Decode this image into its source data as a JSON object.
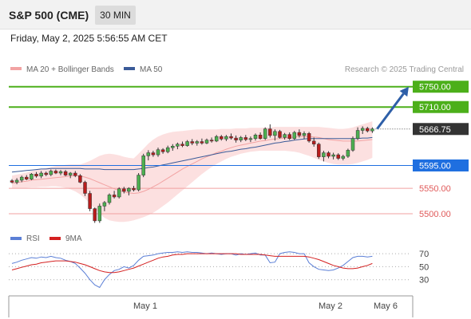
{
  "header": {
    "symbol": "S&P 500 (CME)",
    "interval": "30 MIN",
    "datetime": "Friday, May 2, 2025 5:56:55 AM CET"
  },
  "credit": "Research © 2025 Trading Central",
  "colors": {
    "green": "#4caf1a",
    "blue_line": "#3a5aa8",
    "blue_label": "#1f6fe0",
    "red": "#e05a5a",
    "current": "#333333",
    "bull": "#4caf50",
    "bear": "#b81c1c",
    "band": "#fbd6d6",
    "ma50": "#3a5a98",
    "ma20": "#f2a3a3",
    "rsi": "#5b7fd6",
    "rsi_ma": "#d42020",
    "arrow": "#2e5fa8"
  },
  "chart_data": [
    {
      "type": "candlestick",
      "title": "",
      "legend": [
        {
          "label": "MA 20 + Bollinger Bands",
          "color_key": "ma20"
        },
        {
          "label": "MA 50",
          "color_key": "ma50"
        }
      ],
      "x_ticks": [
        "May 1",
        "May 2",
        "May 6"
      ],
      "ylim": [
        5478,
        5770
      ],
      "levels": [
        {
          "value": 5750,
          "label": "5750.00",
          "kind": "resistance",
          "color_key": "green",
          "style": "box"
        },
        {
          "value": 5710,
          "label": "5710.00",
          "kind": "resistance",
          "color_key": "green",
          "style": "box"
        },
        {
          "value": 5666.75,
          "label": "5666.75",
          "kind": "current",
          "color_key": "current",
          "style": "box"
        },
        {
          "value": 5595,
          "label": "5595.00",
          "kind": "pivot",
          "color_key": "blue_label",
          "style": "box"
        },
        {
          "value": 5550,
          "label": "5550.00",
          "kind": "support",
          "color_key": "red",
          "style": "text"
        },
        {
          "value": 5500,
          "label": "5500.00",
          "kind": "support",
          "color_key": "red",
          "style": "text"
        }
      ],
      "arrow": {
        "from": 5667,
        "to": 5750
      },
      "candles": [
        [
          5565,
          5568,
          5560,
          5562
        ],
        [
          5562,
          5570,
          5558,
          5566
        ],
        [
          5566,
          5575,
          5562,
          5572
        ],
        [
          5572,
          5576,
          5566,
          5568
        ],
        [
          5568,
          5580,
          5566,
          5578
        ],
        [
          5578,
          5582,
          5571,
          5574
        ],
        [
          5574,
          5584,
          5570,
          5580
        ],
        [
          5580,
          5583,
          5574,
          5577
        ],
        [
          5577,
          5587,
          5574,
          5584
        ],
        [
          5584,
          5587,
          5578,
          5580
        ],
        [
          5580,
          5586,
          5576,
          5583
        ],
        [
          5583,
          5586,
          5574,
          5576
        ],
        [
          5576,
          5582,
          5570,
          5580
        ],
        [
          5580,
          5584,
          5572,
          5575
        ],
        [
          5575,
          5578,
          5560,
          5562
        ],
        [
          5562,
          5565,
          5535,
          5540
        ],
        [
          5540,
          5545,
          5505,
          5510
        ],
        [
          5510,
          5512,
          5482,
          5486
        ],
        [
          5486,
          5520,
          5482,
          5515
        ],
        [
          5515,
          5525,
          5505,
          5522
        ],
        [
          5522,
          5540,
          5518,
          5537
        ],
        [
          5537,
          5545,
          5530,
          5533
        ],
        [
          5533,
          5552,
          5530,
          5549
        ],
        [
          5549,
          5553,
          5540,
          5544
        ],
        [
          5544,
          5552,
          5536,
          5550
        ],
        [
          5550,
          5555,
          5544,
          5547
        ],
        [
          5547,
          5580,
          5544,
          5576
        ],
        [
          5576,
          5618,
          5572,
          5614
        ],
        [
          5614,
          5625,
          5605,
          5620
        ],
        [
          5620,
          5624,
          5612,
          5616
        ],
        [
          5616,
          5630,
          5612,
          5626
        ],
        [
          5626,
          5629,
          5618,
          5622
        ],
        [
          5622,
          5634,
          5619,
          5630
        ],
        [
          5630,
          5637,
          5624,
          5633
        ],
        [
          5633,
          5640,
          5627,
          5637
        ],
        [
          5637,
          5642,
          5631,
          5634
        ],
        [
          5634,
          5645,
          5632,
          5642
        ],
        [
          5642,
          5647,
          5635,
          5639
        ],
        [
          5639,
          5645,
          5634,
          5642
        ],
        [
          5642,
          5648,
          5636,
          5639
        ],
        [
          5639,
          5648,
          5637,
          5645
        ],
        [
          5645,
          5650,
          5640,
          5643
        ],
        [
          5643,
          5655,
          5641,
          5652
        ],
        [
          5652,
          5655,
          5644,
          5647
        ],
        [
          5647,
          5655,
          5643,
          5652
        ],
        [
          5652,
          5658,
          5646,
          5649
        ],
        [
          5649,
          5654,
          5640,
          5645
        ],
        [
          5645,
          5653,
          5641,
          5650
        ],
        [
          5650,
          5655,
          5643,
          5646
        ],
        [
          5646,
          5652,
          5641,
          5648
        ],
        [
          5648,
          5658,
          5644,
          5655
        ],
        [
          5655,
          5660,
          5646,
          5648
        ],
        [
          5648,
          5670,
          5645,
          5667
        ],
        [
          5667,
          5676,
          5650,
          5654
        ],
        [
          5654,
          5666,
          5644,
          5662
        ],
        [
          5662,
          5665,
          5648,
          5650
        ],
        [
          5650,
          5659,
          5646,
          5656
        ],
        [
          5656,
          5660,
          5645,
          5648
        ],
        [
          5648,
          5663,
          5645,
          5660
        ],
        [
          5660,
          5666,
          5650,
          5654
        ],
        [
          5654,
          5662,
          5647,
          5658
        ],
        [
          5658,
          5661,
          5640,
          5643
        ],
        [
          5643,
          5650,
          5632,
          5637
        ],
        [
          5637,
          5640,
          5608,
          5612
        ],
        [
          5612,
          5624,
          5603,
          5620
        ],
        [
          5620,
          5623,
          5609,
          5613
        ],
        [
          5613,
          5620,
          5607,
          5616
        ],
        [
          5616,
          5619,
          5606,
          5609
        ],
        [
          5609,
          5616,
          5605,
          5613
        ],
        [
          5613,
          5628,
          5610,
          5625
        ],
        [
          5625,
          5652,
          5622,
          5648
        ],
        [
          5648,
          5670,
          5645,
          5664
        ],
        [
          5664,
          5672,
          5657,
          5668
        ],
        [
          5668,
          5671,
          5660,
          5663
        ],
        [
          5663,
          5670,
          5659,
          5667
        ]
      ],
      "ma50": [
        5582,
        5583,
        5584,
        5585,
        5586,
        5587,
        5588,
        5588,
        5589,
        5589,
        5589,
        5589,
        5589,
        5589,
        5589,
        5588,
        5588,
        5588,
        5588,
        5587,
        5587,
        5587,
        5587,
        5587,
        5587,
        5587,
        5588,
        5589,
        5591,
        5592,
        5594,
        5596,
        5598,
        5600,
        5602,
        5604,
        5606,
        5608,
        5610,
        5612,
        5614,
        5616,
        5618,
        5620,
        5622,
        5623,
        5625,
        5627,
        5628,
        5630,
        5631,
        5633,
        5635,
        5637,
        5639,
        5640,
        5642,
        5643,
        5645,
        5646,
        5647,
        5648,
        5648,
        5648,
        5648,
        5648,
        5648,
        5648,
        5648,
        5648,
        5648,
        5648,
        5649,
        5649,
        5650
      ],
      "ma20": [
        5560,
        5561,
        5563,
        5564,
        5566,
        5567,
        5568,
        5569,
        5570,
        5571,
        5572,
        5573,
        5574,
        5575,
        5574,
        5572,
        5569,
        5565,
        5561,
        5557,
        5553,
        5549,
        5546,
        5543,
        5541,
        5540,
        5541,
        5544,
        5548,
        5553,
        5558,
        5564,
        5570,
        5576,
        5582,
        5588,
        5593,
        5598,
        5603,
        5608,
        5612,
        5616,
        5620,
        5623,
        5627,
        5630,
        5633,
        5635,
        5637,
        5639,
        5641,
        5643,
        5644,
        5646,
        5647,
        5648,
        5649,
        5650,
        5651,
        5652,
        5652,
        5652,
        5651,
        5650,
        5648,
        5646,
        5645,
        5644,
        5643,
        5643,
        5643,
        5643,
        5644,
        5645,
        5646
      ],
      "bb_upper": [
        5575,
        5577,
        5579,
        5581,
        5584,
        5586,
        5588,
        5590,
        5592,
        5594,
        5595,
        5596,
        5597,
        5597,
        5597,
        5600,
        5604,
        5609,
        5614,
        5617,
        5618,
        5617,
        5615,
        5612,
        5610,
        5609,
        5618,
        5628,
        5638,
        5646,
        5652,
        5656,
        5659,
        5661,
        5662,
        5663,
        5664,
        5665,
        5666,
        5666,
        5666,
        5666,
        5666,
        5667,
        5667,
        5667,
        5668,
        5668,
        5668,
        5669,
        5669,
        5669,
        5670,
        5670,
        5671,
        5671,
        5671,
        5671,
        5671,
        5671,
        5671,
        5671,
        5671,
        5671,
        5670,
        5669,
        5668,
        5667,
        5667,
        5668,
        5670,
        5673,
        5676,
        5679,
        5682
      ],
      "bb_lower": [
        5550,
        5550,
        5551,
        5551,
        5552,
        5552,
        5553,
        5553,
        5554,
        5554,
        5553,
        5551,
        5548,
        5544,
        5538,
        5530,
        5520,
        5510,
        5500,
        5492,
        5487,
        5485,
        5484,
        5484,
        5485,
        5487,
        5490,
        5493,
        5497,
        5502,
        5508,
        5515,
        5522,
        5530,
        5538,
        5546,
        5554,
        5562,
        5570,
        5578,
        5585,
        5592,
        5598,
        5603,
        5608,
        5612,
        5615,
        5618,
        5620,
        5622,
        5623,
        5624,
        5624,
        5624,
        5624,
        5624,
        5624,
        5623,
        5622,
        5620,
        5617,
        5614,
        5610,
        5606,
        5603,
        5600,
        5598,
        5597,
        5597,
        5597,
        5598,
        5600,
        5603,
        5606,
        5610
      ]
    },
    {
      "type": "line",
      "title": "",
      "legend": [
        {
          "label": "RSI",
          "color_key": "rsi"
        },
        {
          "label": "9MA",
          "color_key": "rsi_ma"
        }
      ],
      "y_ticks": [
        "70",
        "50",
        "30"
      ],
      "ylim": [
        10,
        80
      ],
      "series": [
        {
          "name": "RSI",
          "color_key": "rsi",
          "values": [
            55,
            57,
            60,
            62,
            64,
            63,
            65,
            64,
            66,
            64,
            63,
            60,
            58,
            55,
            48,
            40,
            30,
            22,
            18,
            30,
            38,
            44,
            46,
            50,
            48,
            52,
            60,
            66,
            67,
            68,
            70,
            71,
            72,
            72,
            73,
            72,
            73,
            72,
            72,
            71,
            70,
            71,
            70,
            69,
            70,
            70,
            68,
            70,
            69,
            70,
            71,
            68,
            68,
            56,
            57,
            70,
            72,
            73,
            72,
            70,
            70,
            56,
            50,
            46,
            45,
            44,
            45,
            48,
            52,
            58,
            64,
            66,
            66,
            65,
            66
          ]
        },
        {
          "name": "9MA",
          "color_key": "rsi_ma",
          "values": [
            45,
            47,
            49,
            51,
            53,
            54,
            56,
            57,
            58,
            59,
            59,
            59,
            58,
            57,
            55,
            53,
            50,
            47,
            44,
            42,
            41,
            41,
            42,
            44,
            46,
            48,
            51,
            54,
            57,
            60,
            63,
            65,
            66,
            68,
            69,
            69,
            70,
            70,
            70,
            70,
            70,
            70,
            70,
            70,
            70,
            70,
            70,
            69,
            69,
            69,
            69,
            69,
            68,
            67,
            66,
            66,
            66,
            66,
            66,
            66,
            66,
            65,
            63,
            61,
            58,
            55,
            52,
            50,
            48,
            47,
            47,
            48,
            50,
            52,
            55
          ]
        }
      ]
    }
  ]
}
